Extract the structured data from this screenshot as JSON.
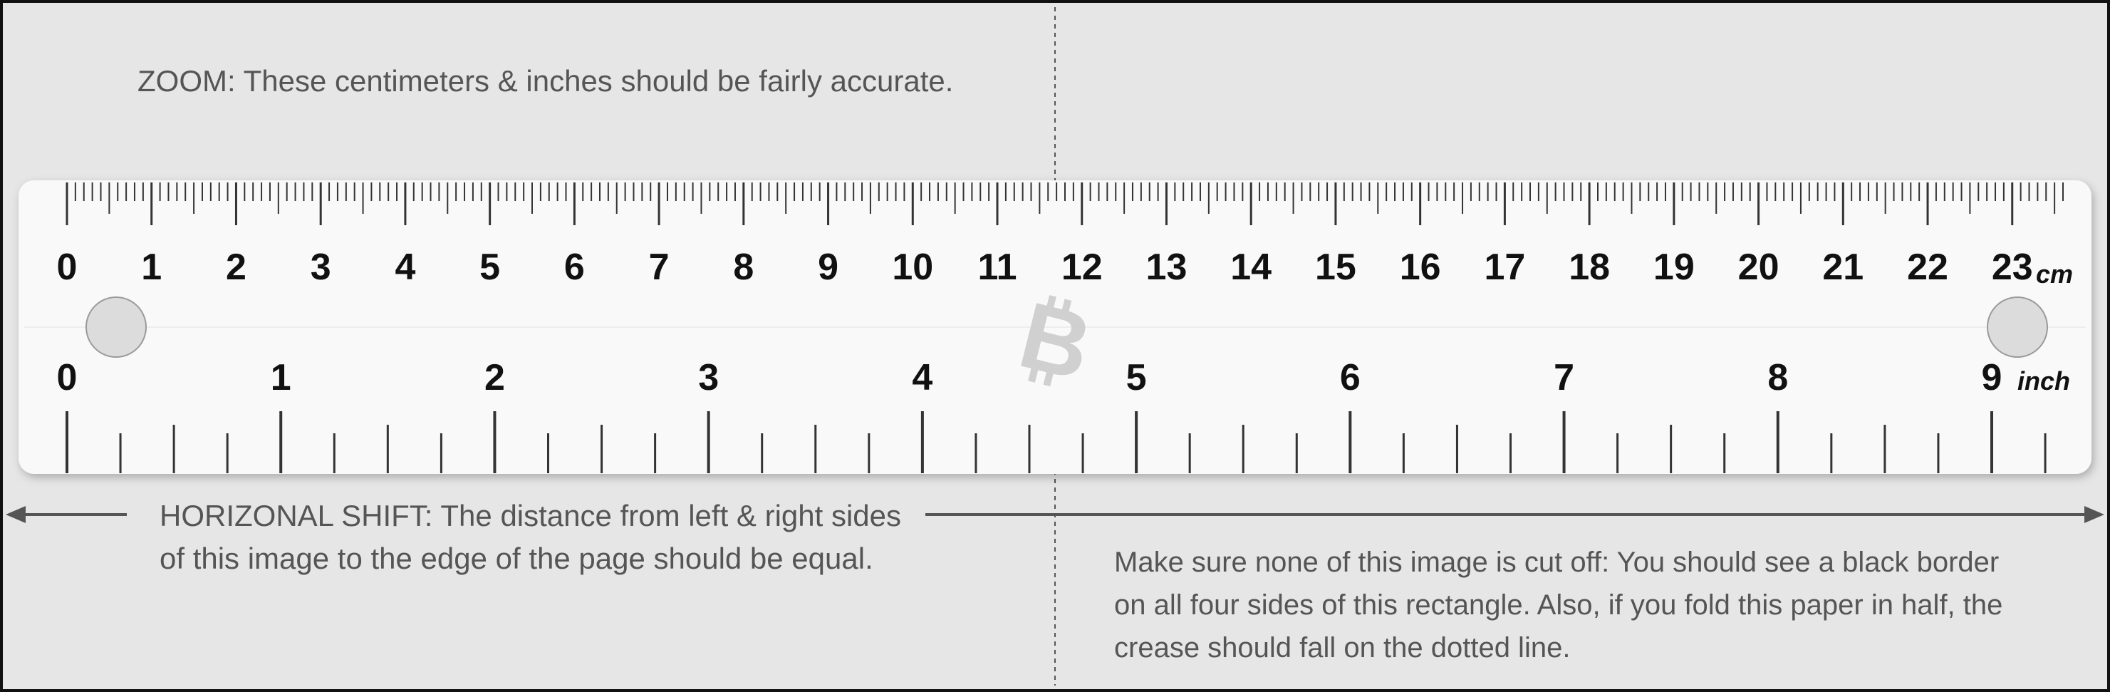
{
  "notes": {
    "zoom_heading": "ZOOM:",
    "zoom_text": "These centimeters & inches should be fairly accurate.",
    "shift_heading": "HORIZONAL SHIFT:",
    "shift_text_line1": "The distance from left & right sides",
    "shift_text_line2": "of this image to the edge of the page should be equal.",
    "border_text_line1": "Make sure none of this image is cut off: You should see a black border",
    "border_text_line2": "on all four sides of this rectangle. Also, if you fold this paper in half, the",
    "border_text_line3": "crease should fall on the dotted line."
  },
  "ruler": {
    "cm_unit": "cm",
    "inch_unit": "inch",
    "cm_labels": [
      "0",
      "1",
      "2",
      "3",
      "4",
      "5",
      "6",
      "7",
      "8",
      "9",
      "10",
      "11",
      "12",
      "13",
      "14",
      "15",
      "16",
      "17",
      "18",
      "19",
      "20",
      "21",
      "22",
      "23"
    ],
    "inch_labels": [
      "0",
      "1",
      "2",
      "3",
      "4",
      "5",
      "6",
      "7",
      "8",
      "9"
    ],
    "logo_icon": "bitcoin-logo-icon"
  },
  "colors": {
    "page_background": "#e6e6e6",
    "ruler_face": "#f9f9f9",
    "border": "#111111",
    "text": "#555555"
  }
}
